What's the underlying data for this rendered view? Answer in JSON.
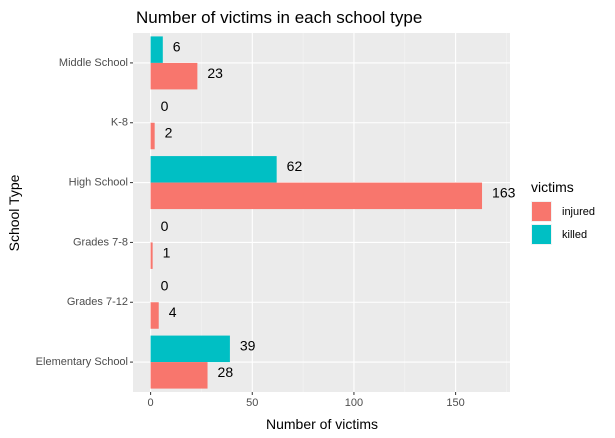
{
  "chart_data": {
    "type": "bar",
    "orientation": "horizontal",
    "title": "Number of victims in each school type",
    "xlabel": "Number of victims",
    "ylabel": "School Type",
    "categories": [
      "Middle School",
      "K-8",
      "High School",
      "Grades 7-8",
      "Grades 7-12",
      "Elementary School"
    ],
    "series": [
      {
        "name": "killed",
        "color": "#00bfc4",
        "values": [
          6,
          0,
          62,
          0,
          0,
          39
        ]
      },
      {
        "name": "injured",
        "color": "#f8766d",
        "values": [
          23,
          2,
          163,
          1,
          4,
          28
        ]
      }
    ],
    "xlim": [
      0,
      175
    ],
    "xticks": [
      0,
      50,
      100,
      150
    ],
    "grid": true,
    "legend": {
      "title": "victims",
      "position": "right",
      "entries": [
        "injured",
        "killed"
      ]
    }
  }
}
